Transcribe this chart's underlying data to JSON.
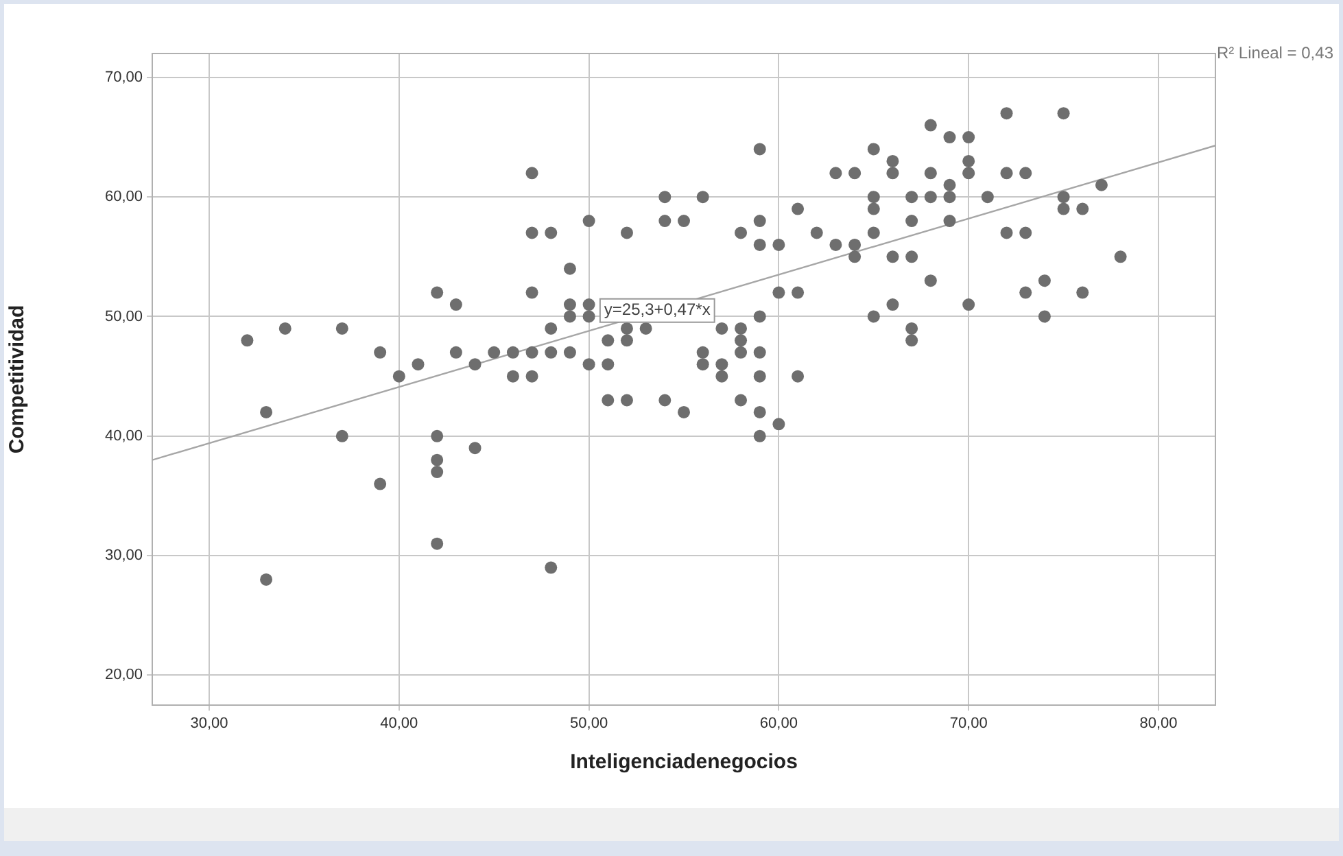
{
  "chart_data": {
    "type": "scatter",
    "xlabel": "Inteligenciadenegocios",
    "ylabel": "Competitividad",
    "xlim": [
      27,
      83
    ],
    "ylim": [
      17.5,
      72
    ],
    "xticks": [
      {
        "value": 30,
        "label": "30,00"
      },
      {
        "value": 40,
        "label": "40,00"
      },
      {
        "value": 50,
        "label": "50,00"
      },
      {
        "value": 60,
        "label": "60,00"
      },
      {
        "value": 70,
        "label": "70,00"
      },
      {
        "value": 80,
        "label": "80,00"
      }
    ],
    "yticks": [
      {
        "value": 20,
        "label": "20,00"
      },
      {
        "value": 30,
        "label": "30,00"
      },
      {
        "value": 40,
        "label": "40,00"
      },
      {
        "value": 50,
        "label": "50,00"
      },
      {
        "value": 60,
        "label": "60,00"
      },
      {
        "value": 70,
        "label": "70,00"
      }
    ],
    "grid": true,
    "legend": false,
    "marker": "circle",
    "series": [
      {
        "type": "scatter",
        "color": "#6e6e6e",
        "x": [
          32,
          33,
          33,
          34,
          37,
          37,
          39,
          39,
          40,
          41,
          42,
          42,
          42,
          42,
          42,
          43,
          43,
          44,
          44,
          45,
          46,
          46,
          47,
          47,
          47,
          47,
          47,
          48,
          48,
          48,
          48,
          49,
          49,
          49,
          49,
          50,
          50,
          50,
          50,
          51,
          51,
          51,
          52,
          52,
          52,
          52,
          53,
          54,
          54,
          54,
          55,
          55,
          56,
          56,
          56,
          57,
          57,
          57,
          58,
          58,
          58,
          58,
          58,
          59,
          59,
          59,
          59,
          59,
          59,
          59,
          59,
          60,
          60,
          60,
          61,
          61,
          61,
          62,
          63,
          63,
          64,
          64,
          64,
          65,
          65,
          65,
          65,
          65,
          66,
          66,
          66,
          66,
          67,
          67,
          67,
          67,
          67,
          68,
          68,
          68,
          68,
          69,
          69,
          69,
          69,
          70,
          70,
          70,
          70,
          71,
          72,
          72,
          72,
          73,
          73,
          73,
          74,
          74,
          75,
          75,
          75,
          76,
          76,
          77,
          78
        ],
        "values": [
          48,
          42,
          28,
          49,
          49,
          40,
          47,
          36,
          45,
          46,
          52,
          40,
          38,
          37,
          31,
          51,
          47,
          46,
          39,
          47,
          47,
          45,
          62,
          57,
          52,
          47,
          45,
          57,
          49,
          47,
          29,
          54,
          51,
          50,
          47,
          58,
          51,
          50,
          46,
          48,
          46,
          43,
          57,
          49,
          48,
          43,
          49,
          60,
          58,
          43,
          58,
          42,
          60,
          47,
          46,
          49,
          46,
          45,
          57,
          49,
          48,
          47,
          43,
          64,
          58,
          56,
          50,
          47,
          45,
          42,
          40,
          56,
          52,
          41,
          59,
          52,
          45,
          57,
          62,
          56,
          62,
          56,
          55,
          64,
          60,
          59,
          57,
          50,
          63,
          62,
          55,
          51,
          60,
          58,
          55,
          49,
          48,
          66,
          62,
          60,
          53,
          65,
          61,
          60,
          58,
          65,
          63,
          62,
          51,
          60,
          67,
          62,
          57,
          62,
          57,
          52,
          53,
          50,
          67,
          60,
          59,
          59,
          52,
          61,
          55
        ]
      },
      {
        "type": "line",
        "color": "#a6a6a6",
        "marker": "none",
        "x": [
          27,
          83
        ],
        "values": [
          38.0,
          64.3
        ]
      }
    ],
    "annotations": [
      {
        "text": "y=25,3+0,47*x",
        "x": 53.6,
        "y": 50.5
      },
      "R² Lineal = 0,43"
    ]
  }
}
